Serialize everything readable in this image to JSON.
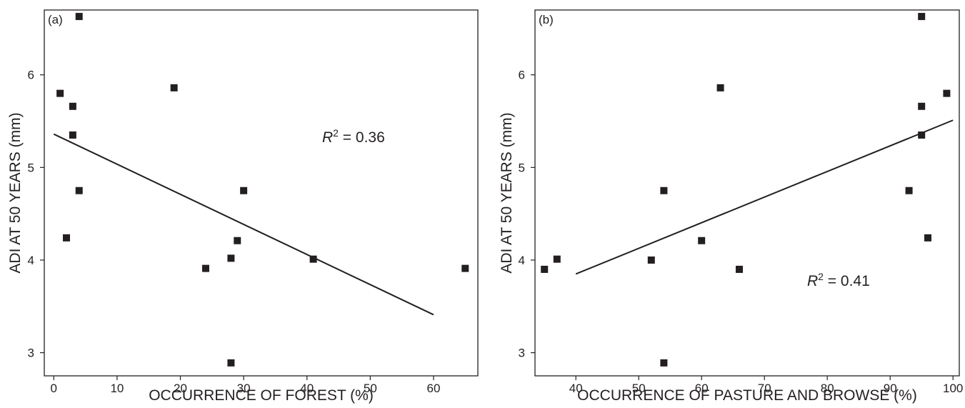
{
  "chart_data": [
    {
      "type": "scatter",
      "panel_label": "(a)",
      "xlabel": "OCCURRENCE OF FOREST (%)",
      "ylabel": "ADI AT 50 YEARS (mm)",
      "xlim": [
        -1.5,
        67
      ],
      "ylim": [
        2.75,
        6.7
      ],
      "xticks": [
        0,
        10,
        20,
        30,
        40,
        50,
        60
      ],
      "yticks": [
        3,
        4,
        5,
        6
      ],
      "x": [
        4,
        1,
        19,
        3,
        3,
        4,
        2,
        30,
        29,
        28,
        24,
        41,
        65,
        28
      ],
      "y": [
        6.63,
        5.8,
        5.86,
        5.66,
        5.35,
        4.75,
        4.24,
        4.75,
        4.21,
        4.02,
        3.91,
        4.01,
        3.91,
        2.89
      ],
      "fit_line": {
        "x": [
          0,
          60
        ],
        "y": [
          5.36,
          3.41
        ]
      },
      "annotation": {
        "prefix": "R",
        "superscript": "2",
        "suffix": " = 0.36"
      },
      "grid": false
    },
    {
      "type": "scatter",
      "panel_label": "(b)",
      "xlabel": "OCCURRENCE OF PASTURE AND BROWSE (%)",
      "ylabel": "ADI AT 50 YEARS (mm)",
      "xlim": [
        33.5,
        101
      ],
      "ylim": [
        2.75,
        6.7
      ],
      "xticks": [
        40,
        50,
        60,
        70,
        80,
        90,
        100
      ],
      "yticks": [
        3,
        4,
        5,
        6
      ],
      "x": [
        95,
        63,
        99,
        95,
        95,
        54,
        93,
        96,
        60,
        52,
        35,
        37,
        66,
        54
      ],
      "y": [
        6.63,
        5.86,
        5.8,
        5.66,
        5.35,
        4.75,
        4.75,
        4.24,
        4.21,
        4.0,
        3.9,
        4.01,
        3.9,
        2.89
      ],
      "fit_line": {
        "x": [
          40,
          100
        ],
        "y": [
          3.85,
          5.51
        ]
      },
      "annotation": {
        "prefix": "R",
        "superscript": "2",
        "suffix": " = 0.41"
      },
      "grid": false
    }
  ]
}
